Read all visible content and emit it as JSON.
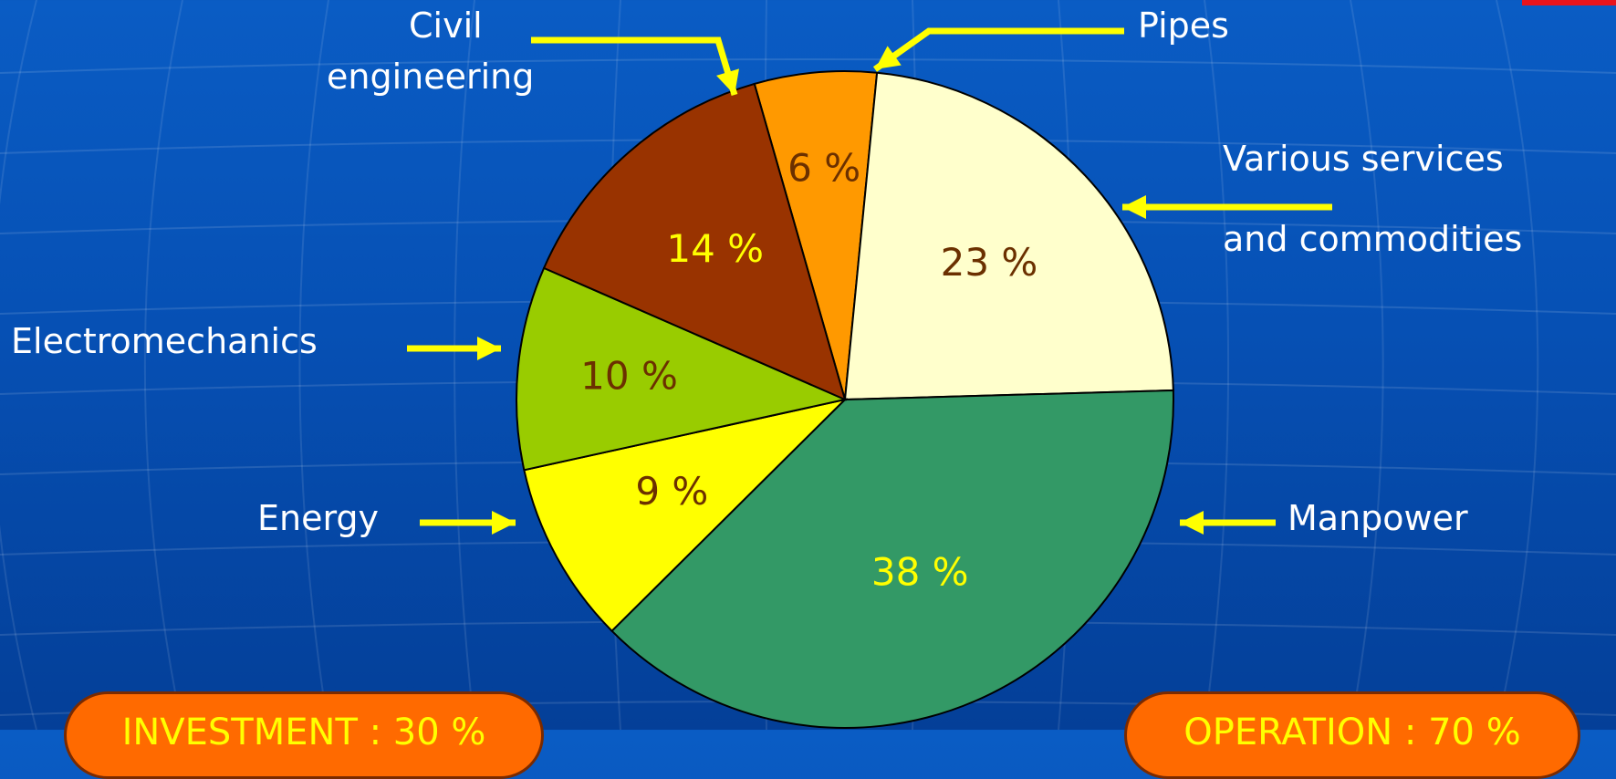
{
  "chart_data": {
    "type": "pie",
    "title": "",
    "slices": [
      {
        "label": "Pipes",
        "value": 6,
        "display": "6 %",
        "color": "#ff9900",
        "text_color": "#6b3000"
      },
      {
        "label": "Various services and commodities",
        "value": 23,
        "display": "23 %",
        "color": "#ffffcc",
        "text_color": "#6b3000"
      },
      {
        "label": "Manpower",
        "value": 38,
        "display": "38 %",
        "color": "#339966",
        "text_color": "#ffff00"
      },
      {
        "label": "Energy",
        "value": 9,
        "display": "9 %",
        "color": "#ffff00",
        "text_color": "#6b3000"
      },
      {
        "label": "Electromechanics",
        "value": 10,
        "display": "10 %",
        "color": "#99cc00",
        "text_color": "#6b3000"
      },
      {
        "label": "Civil engineering",
        "value": 14,
        "display": "14 %",
        "color": "#993300",
        "text_color": "#ffff00"
      }
    ],
    "callouts": {
      "civil_line1": "Civil",
      "civil_line2": "engineering",
      "pipes": "Pipes",
      "various_line1": "Various services",
      "various_line2": "and commodities",
      "electromechanics": "Electromechanics",
      "energy": "Energy",
      "manpower": "Manpower"
    },
    "groups": {
      "investment": "INVESTMENT : 30 %",
      "operation": "OPERATION : 70 %"
    }
  },
  "colors": {
    "background": "#0650b4",
    "arrow": "#ffff00",
    "pill_fill": "#ff6a00",
    "pill_text": "#ffff00",
    "corner_accent": "#e8141c"
  }
}
